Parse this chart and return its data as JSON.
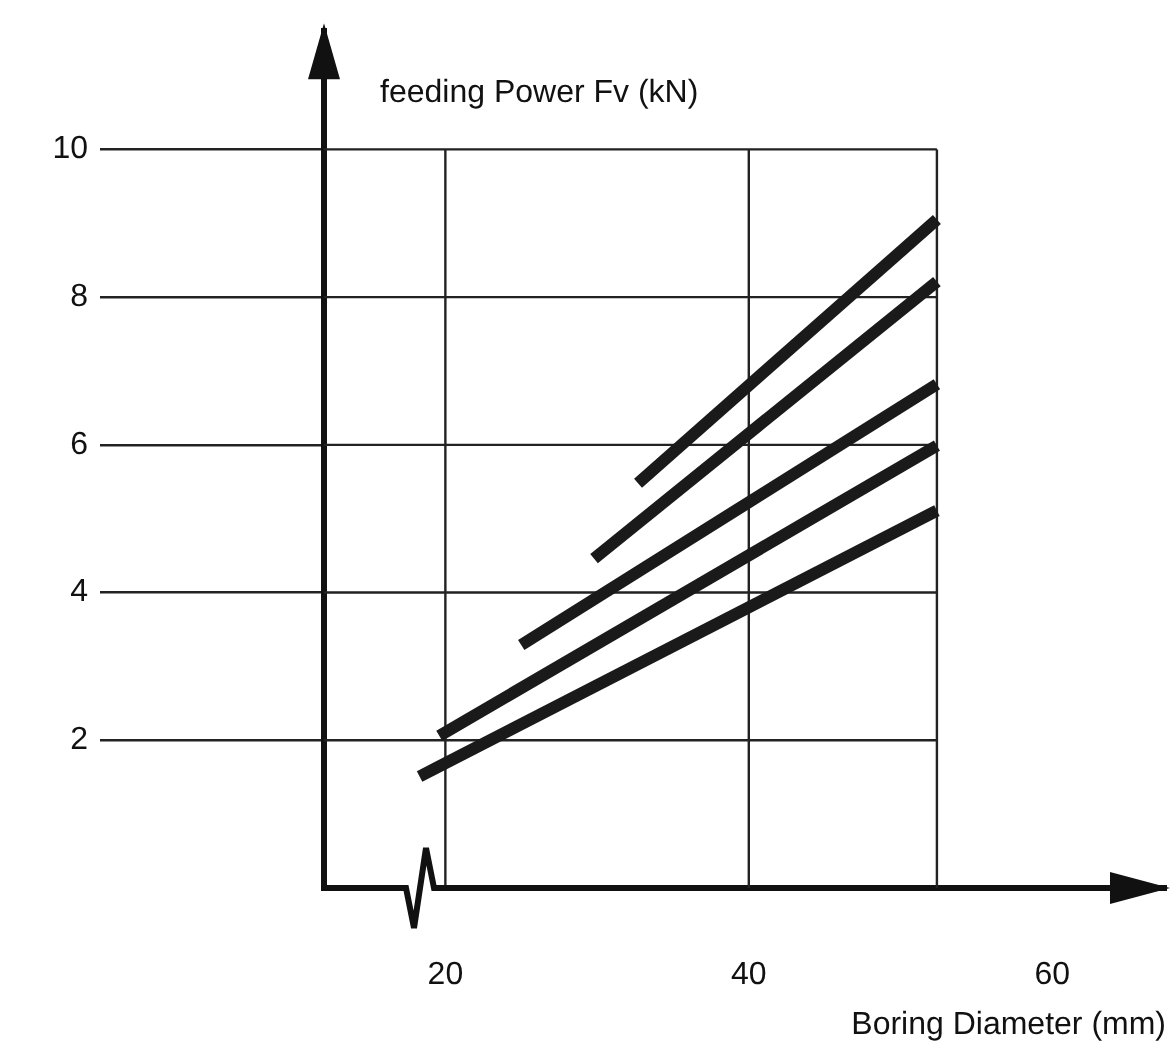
{
  "chart_data": {
    "type": "line",
    "xlabel": "Boring Diameter (mm)",
    "ylabel": "feeding Power Fv (kN)",
    "xlim": [
      12,
      67.5
    ],
    "xticks": [
      20,
      40,
      60
    ],
    "ylim": [
      0,
      11.6
    ],
    "yticks": [
      2,
      4,
      6,
      8,
      10
    ],
    "grid": true,
    "marker": "none",
    "line_style": "solid",
    "series": [
      {
        "color": "#1a1a1a",
        "x": [
          32.7,
          52.4
        ],
        "values": [
          5.48,
          9.05
        ]
      },
      {
        "color": "#1a1a1a",
        "x": [
          29.8,
          52.4
        ],
        "values": [
          4.46,
          8.21
        ]
      },
      {
        "color": "#1a1a1a",
        "x": [
          25.0,
          52.4
        ],
        "values": [
          3.29,
          6.82
        ]
      },
      {
        "color": "#1a1a1a",
        "x": [
          19.6,
          52.4
        ],
        "values": [
          2.06,
          5.99
        ]
      },
      {
        "color": "#1a1a1a",
        "x": [
          18.3,
          52.4
        ],
        "values": [
          1.51,
          5.11
        ]
      }
    ]
  }
}
